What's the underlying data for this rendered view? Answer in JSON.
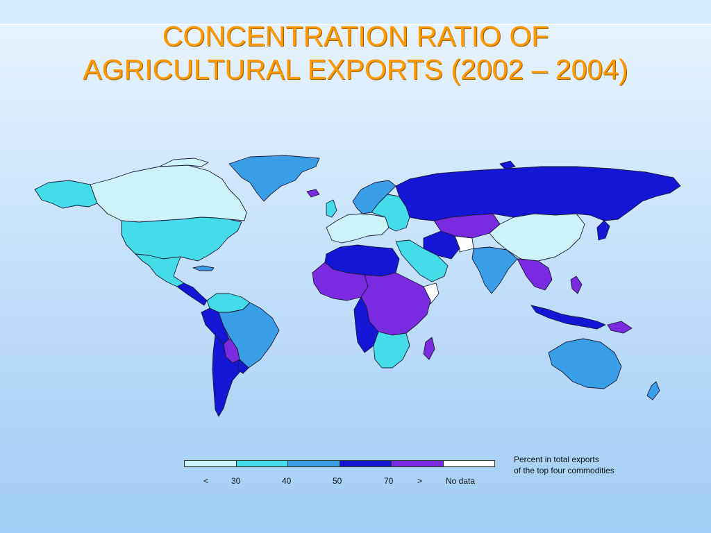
{
  "slide": {
    "title_line1": "CONCENTRATION RATIO OF",
    "title_line2": "AGRICULTURAL EXPORTS (2002 – 2004)"
  },
  "legend": {
    "caption_line1": "Percent in total exports",
    "caption_line2": "of the top four commodities",
    "labels": [
      "<",
      "30",
      "40",
      "50",
      "70",
      ">",
      "No data"
    ],
    "colors": {
      "below_30": "#cdf2f8",
      "30_40": "#45dcea",
      "40_50": "#3a9ee6",
      "50_70": "#1515d6",
      "above_70": "#7a2be0",
      "no_data": "#ffffff"
    }
  }
}
